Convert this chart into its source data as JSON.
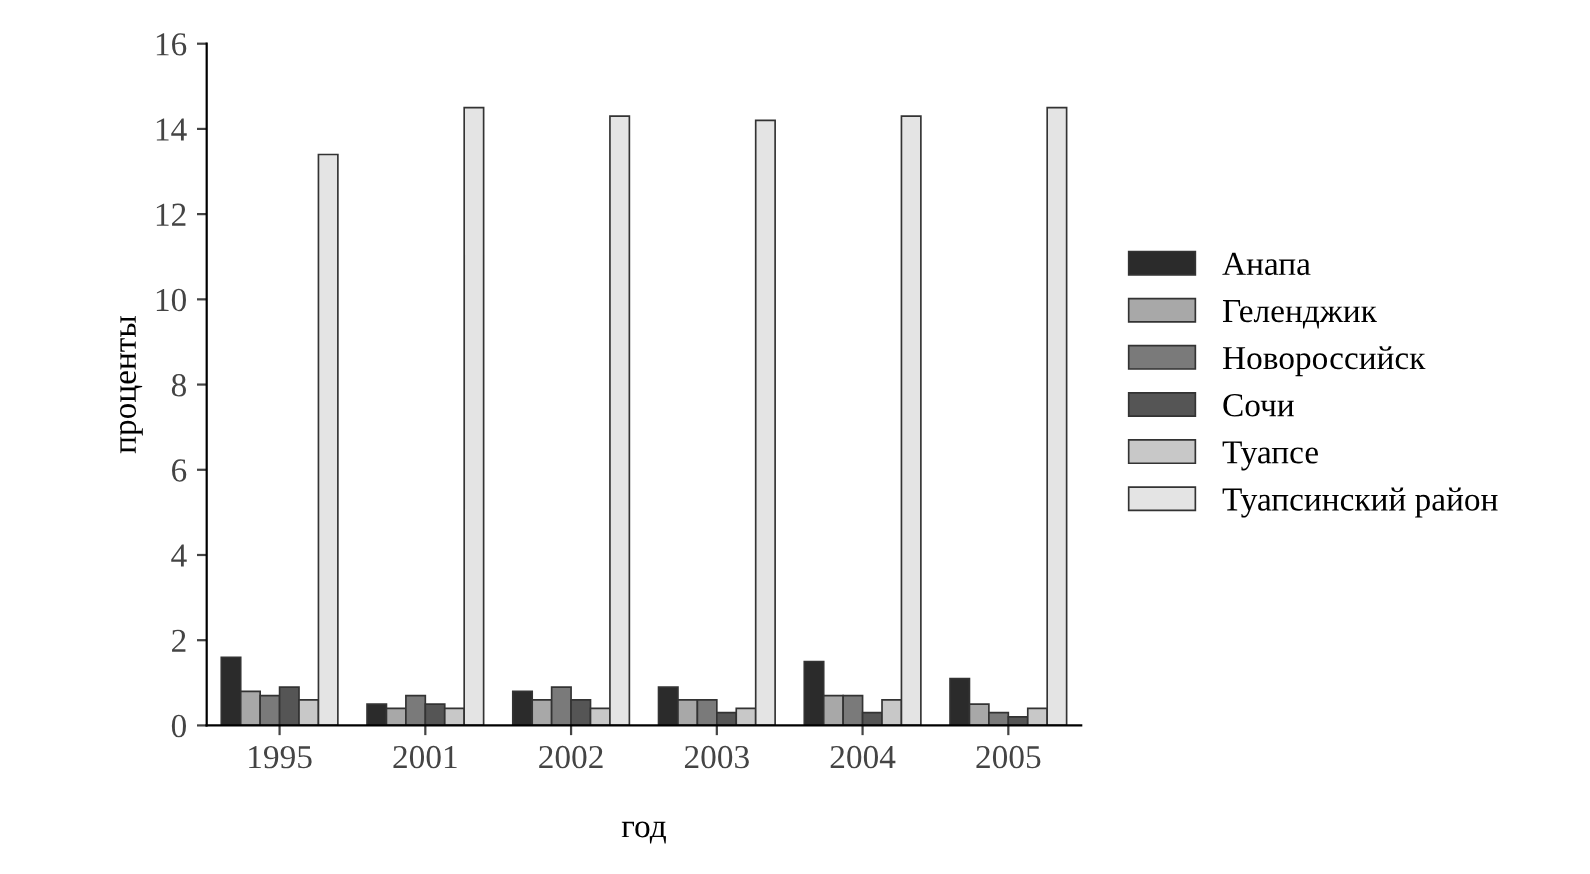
{
  "chart_data": {
    "type": "bar",
    "xlabel": "год",
    "ylabel": "проценты",
    "categories": [
      "1995",
      "2001",
      "2002",
      "2003",
      "2004",
      "2005"
    ],
    "series": [
      {
        "name": "Анапа",
        "color": "#2b2b2b",
        "values": [
          1.6,
          0.5,
          0.8,
          0.9,
          1.5,
          1.1
        ]
      },
      {
        "name": "Геленджик",
        "color": "#a8a8a8",
        "values": [
          0.8,
          0.4,
          0.6,
          0.6,
          0.7,
          0.5
        ]
      },
      {
        "name": "Новороссийск",
        "color": "#7a7a7a",
        "values": [
          0.7,
          0.7,
          0.9,
          0.6,
          0.7,
          0.3
        ]
      },
      {
        "name": "Сочи",
        "color": "#555555",
        "values": [
          0.9,
          0.5,
          0.6,
          0.3,
          0.3,
          0.2
        ]
      },
      {
        "name": "Туапсе",
        "color": "#c8c8c8",
        "values": [
          0.6,
          0.4,
          0.4,
          0.4,
          0.6,
          0.4
        ]
      },
      {
        "name": "Туапсинский район",
        "color": "#e4e4e4",
        "values": [
          13.4,
          14.5,
          14.3,
          14.2,
          14.3,
          14.5
        ]
      }
    ],
    "ylim": [
      0,
      16
    ],
    "yticks": [
      0,
      2,
      4,
      6,
      8,
      10,
      12,
      14,
      16
    ],
    "grid": false,
    "legend": "right"
  }
}
